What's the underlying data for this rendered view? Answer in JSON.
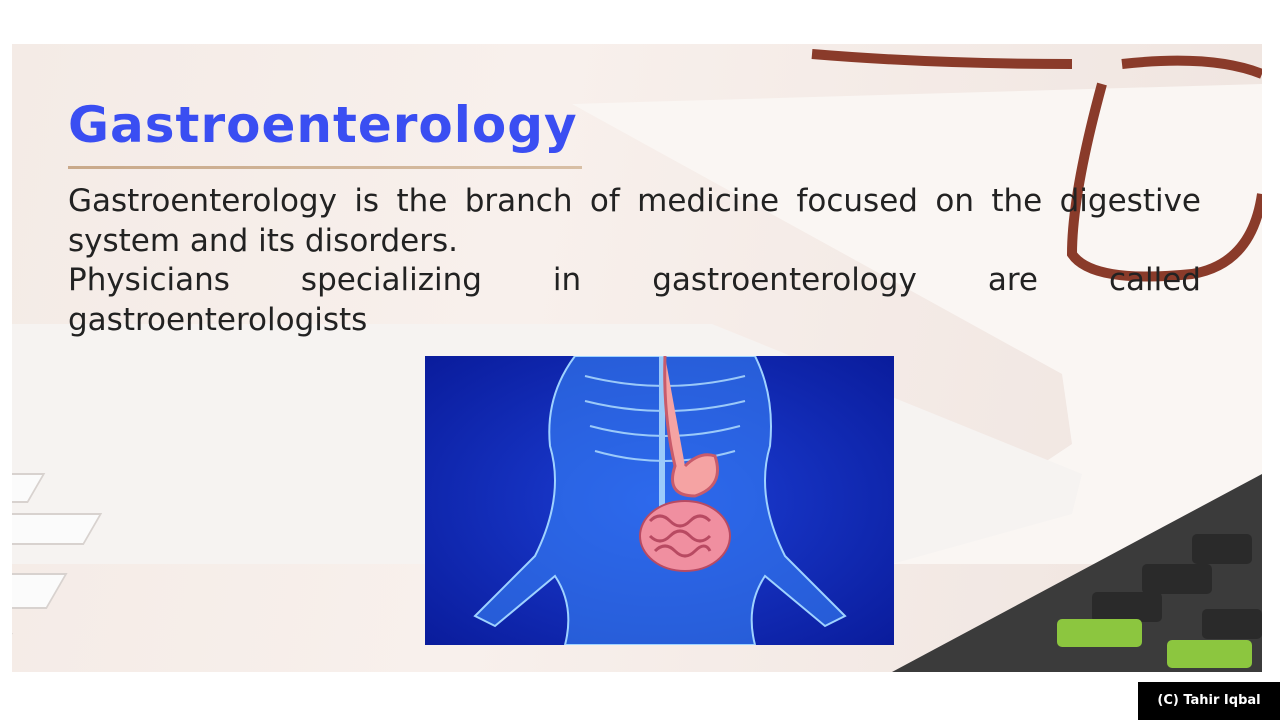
{
  "slide": {
    "title": "Gastroenterology",
    "paragraphs": [
      "Gastroenterology is the branch of medicine focused on the digestive system and its disorders.",
      "Physicians specializing in gastroenterology are called gastroenterologists"
    ]
  },
  "credit": "(C) Tahir Iqbal"
}
